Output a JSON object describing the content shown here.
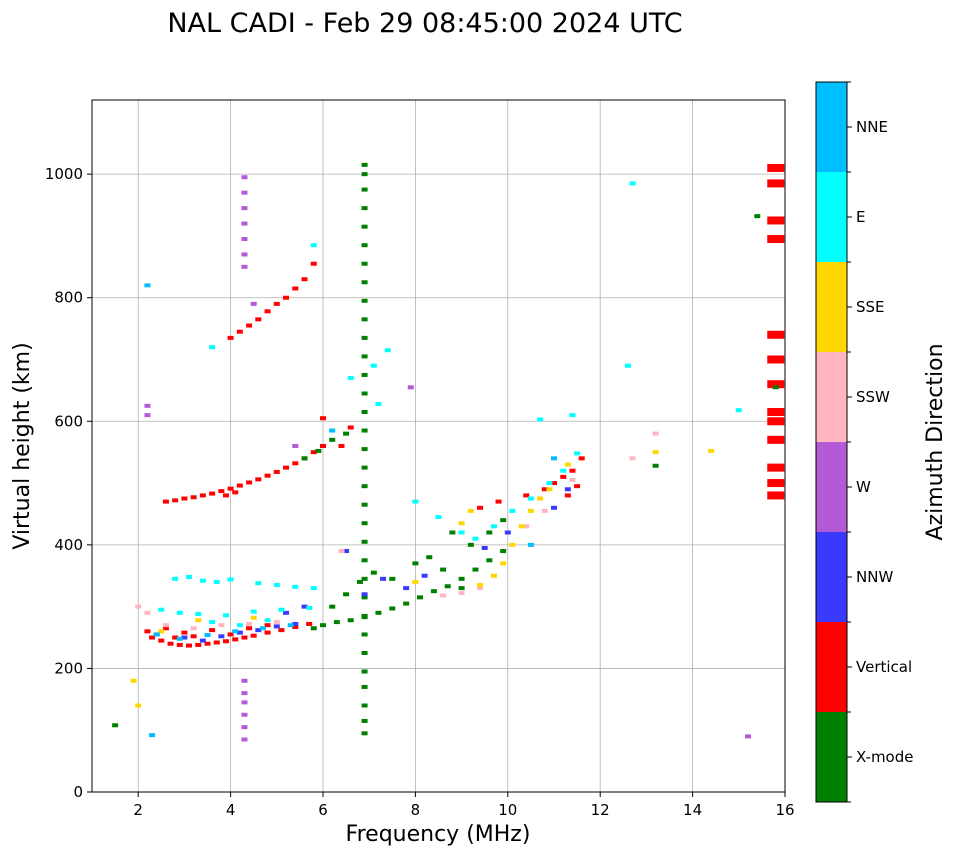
{
  "chart_data": {
    "type": "scatter",
    "title": "NAL CADI - Feb 29 08:45:00 2024 UTC",
    "xlabel": "Frequency (MHz)",
    "ylabel": "Virtual height (km)",
    "xlim": [
      1,
      16
    ],
    "ylim": [
      0,
      1120
    ],
    "xticks": [
      2,
      4,
      6,
      8,
      10,
      12,
      14,
      16
    ],
    "yticks": [
      0,
      200,
      400,
      600,
      800,
      1000
    ],
    "grid": true,
    "colorbar": {
      "title": "Azimuth Direction",
      "categories": [
        {
          "name": "X-mode",
          "color": "#008000"
        },
        {
          "name": "Vertical",
          "color": "#ff0000"
        },
        {
          "name": "NNW",
          "color": "#3a3aff"
        },
        {
          "name": "W",
          "color": "#b35ad6"
        },
        {
          "name": "SSW",
          "color": "#ffb6c1"
        },
        {
          "name": "SSE",
          "color": "#ffd700"
        },
        {
          "name": "E",
          "color": "#00ffff"
        },
        {
          "name": "NNE",
          "color": "#00bfff"
        }
      ]
    },
    "series": [
      {
        "name": "Vertical",
        "points": [
          [
            2.3,
            250
          ],
          [
            2.5,
            245
          ],
          [
            2.7,
            240
          ],
          [
            2.9,
            238
          ],
          [
            3.1,
            237
          ],
          [
            3.3,
            238
          ],
          [
            3.5,
            240
          ],
          [
            3.7,
            242
          ],
          [
            3.9,
            244
          ],
          [
            4.1,
            247
          ],
          [
            4.3,
            250
          ],
          [
            4.5,
            253
          ],
          [
            4.8,
            258
          ],
          [
            5.1,
            262
          ],
          [
            5.4,
            267
          ],
          [
            5.7,
            272
          ],
          [
            2.2,
            260
          ],
          [
            2.4,
            255
          ],
          [
            2.6,
            265
          ],
          [
            2.8,
            250
          ],
          [
            3.0,
            258
          ],
          [
            3.2,
            252
          ],
          [
            3.6,
            262
          ],
          [
            4.0,
            255
          ],
          [
            4.4,
            265
          ],
          [
            4.8,
            270
          ],
          [
            2.6,
            470
          ],
          [
            2.8,
            472
          ],
          [
            3.0,
            475
          ],
          [
            3.2,
            477
          ],
          [
            3.4,
            480
          ],
          [
            3.6,
            483
          ],
          [
            3.8,
            487
          ],
          [
            4.0,
            491
          ],
          [
            4.2,
            496
          ],
          [
            4.4,
            501
          ],
          [
            4.6,
            506
          ],
          [
            4.8,
            512
          ],
          [
            5.0,
            518
          ],
          [
            5.2,
            525
          ],
          [
            5.4,
            532
          ],
          [
            5.6,
            540
          ],
          [
            5.8,
            550
          ],
          [
            6.0,
            560
          ],
          [
            3.9,
            480
          ],
          [
            4.1,
            485
          ],
          [
            4.0,
            735
          ],
          [
            4.2,
            745
          ],
          [
            4.4,
            755
          ],
          [
            4.6,
            765
          ],
          [
            4.8,
            778
          ],
          [
            5.0,
            790
          ],
          [
            5.2,
            800
          ],
          [
            5.4,
            815
          ],
          [
            5.6,
            830
          ],
          [
            5.8,
            855
          ],
          [
            6.0,
            605
          ],
          [
            6.4,
            560
          ],
          [
            6.6,
            590
          ],
          [
            9.4,
            460
          ],
          [
            9.8,
            470
          ],
          [
            10.4,
            480
          ],
          [
            10.8,
            490
          ],
          [
            11.0,
            500
          ],
          [
            11.2,
            510
          ],
          [
            11.4,
            520
          ],
          [
            11.6,
            540
          ],
          [
            11.3,
            480
          ],
          [
            11.5,
            495
          ],
          [
            15.8,
            480
          ],
          [
            15.8,
            500
          ],
          [
            15.8,
            525
          ],
          [
            15.8,
            570
          ],
          [
            15.8,
            600
          ],
          [
            15.8,
            615
          ],
          [
            15.8,
            660
          ],
          [
            15.8,
            700
          ],
          [
            15.8,
            740
          ],
          [
            15.8,
            895
          ],
          [
            15.8,
            925
          ],
          [
            15.8,
            985
          ],
          [
            15.8,
            1010
          ]
        ]
      },
      {
        "name": "X-mode",
        "points": [
          [
            5.8,
            265
          ],
          [
            6.0,
            270
          ],
          [
            6.3,
            275
          ],
          [
            6.6,
            278
          ],
          [
            6.9,
            283
          ],
          [
            7.2,
            290
          ],
          [
            7.5,
            297
          ],
          [
            7.8,
            305
          ],
          [
            8.1,
            315
          ],
          [
            8.4,
            325
          ],
          [
            8.7,
            333
          ],
          [
            9.0,
            345
          ],
          [
            9.3,
            360
          ],
          [
            9.6,
            375
          ],
          [
            9.9,
            390
          ],
          [
            6.2,
            300
          ],
          [
            6.5,
            320
          ],
          [
            6.8,
            340
          ],
          [
            7.1,
            355
          ],
          [
            7.5,
            345
          ],
          [
            8.0,
            370
          ],
          [
            8.3,
            380
          ],
          [
            8.6,
            360
          ],
          [
            9.0,
            330
          ],
          [
            8.8,
            420
          ],
          [
            9.2,
            400
          ],
          [
            9.6,
            420
          ],
          [
            9.9,
            440
          ],
          [
            6.9,
            95
          ],
          [
            6.9,
            115
          ],
          [
            6.9,
            140
          ],
          [
            6.9,
            170
          ],
          [
            6.9,
            195
          ],
          [
            6.9,
            225
          ],
          [
            6.9,
            255
          ],
          [
            6.9,
            285
          ],
          [
            6.9,
            315
          ],
          [
            6.9,
            345
          ],
          [
            6.9,
            375
          ],
          [
            6.9,
            405
          ],
          [
            6.9,
            435
          ],
          [
            6.9,
            465
          ],
          [
            6.9,
            495
          ],
          [
            6.9,
            525
          ],
          [
            6.9,
            555
          ],
          [
            6.9,
            585
          ],
          [
            6.9,
            615
          ],
          [
            6.9,
            645
          ],
          [
            6.9,
            675
          ],
          [
            6.9,
            705
          ],
          [
            6.9,
            735
          ],
          [
            6.9,
            765
          ],
          [
            6.9,
            795
          ],
          [
            6.9,
            825
          ],
          [
            6.9,
            855
          ],
          [
            6.9,
            885
          ],
          [
            6.9,
            915
          ],
          [
            6.9,
            945
          ],
          [
            6.9,
            975
          ],
          [
            6.9,
            1000
          ],
          [
            6.9,
            1015
          ],
          [
            1.5,
            108
          ],
          [
            5.6,
            540
          ],
          [
            5.9,
            552
          ],
          [
            6.2,
            570
          ],
          [
            6.5,
            580
          ],
          [
            13.2,
            528
          ],
          [
            15.8,
            655
          ],
          [
            15.4,
            932
          ]
        ]
      },
      {
        "name": "NNW",
        "points": [
          [
            3.0,
            250
          ],
          [
            3.4,
            245
          ],
          [
            3.8,
            252
          ],
          [
            4.2,
            258
          ],
          [
            4.6,
            262
          ],
          [
            5.0,
            268
          ],
          [
            5.4,
            272
          ],
          [
            5.2,
            290
          ],
          [
            5.6,
            300
          ],
          [
            6.5,
            390
          ],
          [
            6.9,
            320
          ],
          [
            7.3,
            345
          ],
          [
            7.8,
            330
          ],
          [
            8.2,
            350
          ],
          [
            9.5,
            395
          ],
          [
            10.0,
            420
          ],
          [
            11.0,
            460
          ],
          [
            11.3,
            490
          ]
        ]
      },
      {
        "name": "W",
        "points": [
          [
            4.3,
            85
          ],
          [
            4.3,
            105
          ],
          [
            4.3,
            125
          ],
          [
            4.3,
            145
          ],
          [
            4.3,
            160
          ],
          [
            4.3,
            180
          ],
          [
            4.3,
            850
          ],
          [
            4.3,
            870
          ],
          [
            4.3,
            895
          ],
          [
            4.3,
            920
          ],
          [
            4.3,
            945
          ],
          [
            4.3,
            970
          ],
          [
            4.3,
            995
          ],
          [
            2.2,
            610
          ],
          [
            2.2,
            625
          ],
          [
            15.2,
            90
          ],
          [
            4.5,
            790
          ],
          [
            5.4,
            560
          ],
          [
            7.9,
            655
          ]
        ]
      },
      {
        "name": "SSW",
        "points": [
          [
            2.0,
            300
          ],
          [
            2.2,
            290
          ],
          [
            2.6,
            270
          ],
          [
            3.2,
            265
          ],
          [
            3.8,
            270
          ],
          [
            4.4,
            272
          ],
          [
            5.0,
            275
          ],
          [
            6.4,
            390
          ],
          [
            8.6,
            318
          ],
          [
            9.0,
            322
          ],
          [
            9.4,
            330
          ],
          [
            10.4,
            430
          ],
          [
            10.8,
            455
          ],
          [
            11.4,
            505
          ],
          [
            13.2,
            580
          ],
          [
            12.7,
            540
          ]
        ]
      },
      {
        "name": "SSE",
        "points": [
          [
            1.9,
            180
          ],
          [
            2.0,
            140
          ],
          [
            2.5,
            260
          ],
          [
            3.3,
            278
          ],
          [
            4.5,
            282
          ],
          [
            8.0,
            340
          ],
          [
            9.0,
            435
          ],
          [
            9.2,
            455
          ],
          [
            9.4,
            335
          ],
          [
            9.7,
            350
          ],
          [
            9.9,
            370
          ],
          [
            10.1,
            400
          ],
          [
            10.3,
            430
          ],
          [
            10.5,
            455
          ],
          [
            10.7,
            475
          ],
          [
            10.9,
            490
          ],
          [
            11.3,
            530
          ],
          [
            13.2,
            550
          ],
          [
            14.4,
            552
          ]
        ]
      },
      {
        "name": "E",
        "points": [
          [
            2.8,
            345
          ],
          [
            3.1,
            348
          ],
          [
            3.4,
            342
          ],
          [
            3.7,
            340
          ],
          [
            4.0,
            344
          ],
          [
            4.6,
            338
          ],
          [
            5.0,
            335
          ],
          [
            5.4,
            332
          ],
          [
            5.8,
            330
          ],
          [
            2.5,
            295
          ],
          [
            2.9,
            290
          ],
          [
            3.3,
            288
          ],
          [
            3.9,
            286
          ],
          [
            4.5,
            292
          ],
          [
            5.1,
            295
          ],
          [
            5.7,
            298
          ],
          [
            3.6,
            275
          ],
          [
            4.2,
            270
          ],
          [
            4.8,
            278
          ],
          [
            6.6,
            670
          ],
          [
            7.1,
            690
          ],
          [
            7.4,
            715
          ],
          [
            7.2,
            628
          ],
          [
            8.0,
            470
          ],
          [
            8.5,
            445
          ],
          [
            9.0,
            420
          ],
          [
            9.3,
            410
          ],
          [
            9.7,
            430
          ],
          [
            10.1,
            455
          ],
          [
            10.5,
            475
          ],
          [
            10.9,
            500
          ],
          [
            11.2,
            520
          ],
          [
            11.5,
            548
          ],
          [
            11.4,
            610
          ],
          [
            10.7,
            603
          ],
          [
            3.6,
            720
          ],
          [
            5.8,
            885
          ],
          [
            12.7,
            985
          ],
          [
            12.6,
            690
          ],
          [
            15.0,
            618
          ]
        ]
      },
      {
        "name": "NNE",
        "points": [
          [
            2.4,
            255
          ],
          [
            2.9,
            248
          ],
          [
            3.5,
            254
          ],
          [
            4.1,
            260
          ],
          [
            4.7,
            265
          ],
          [
            5.3,
            270
          ],
          [
            2.3,
            92
          ],
          [
            2.2,
            820
          ],
          [
            6.2,
            585
          ],
          [
            10.5,
            400
          ],
          [
            11.0,
            540
          ]
        ]
      }
    ]
  }
}
